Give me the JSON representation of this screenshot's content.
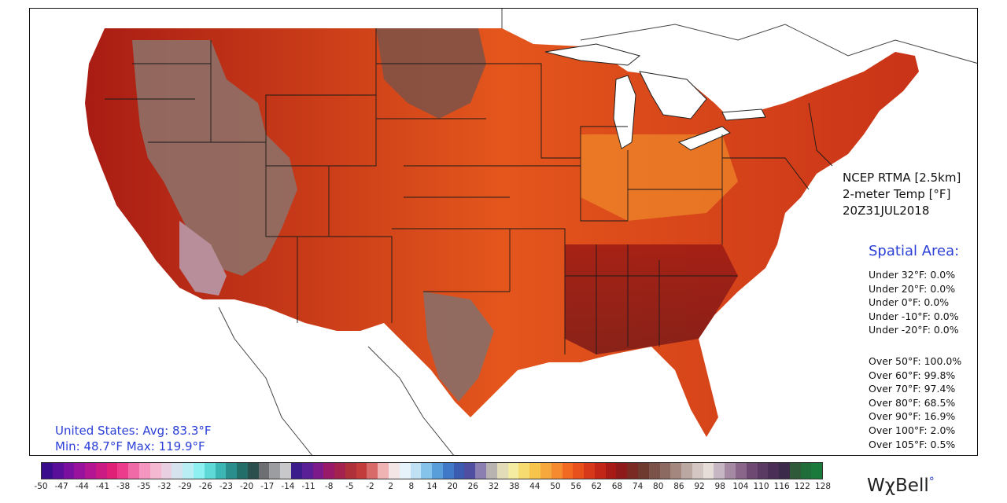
{
  "product": {
    "model": "NCEP RTMA [2.5km]",
    "variable": "2-meter Temp [°F]",
    "valid_time": "20Z31JUL2018"
  },
  "spatial_area": {
    "title": "Spatial Area:",
    "under": [
      "Under 32°F: 0.0%",
      "Under 20°F: 0.0%",
      "Under 0°F: 0.0%",
      "Under -10°F: 0.0%",
      "Under -20°F: 0.0%"
    ],
    "over": [
      "Over 50°F: 100.0%",
      "Over 60°F: 99.8%",
      "Over 70°F: 97.4%",
      "Over 80°F: 68.5%",
      "Over 90°F: 16.9%",
      "Over 100°F: 2.0%",
      "Over 105°F: 0.5%"
    ]
  },
  "summary": {
    "line1": "United States: Avg:  83.3°F",
    "line2": "Min:  48.7°F Max: 119.9°F"
  },
  "colorbar": {
    "ticks": [
      "-50",
      "-47",
      "-44",
      "-41",
      "-38",
      "-35",
      "-32",
      "-29",
      "-26",
      "-23",
      "-20",
      "-17",
      "-14",
      "-11",
      "-8",
      "-5",
      "-2",
      "2",
      "8",
      "14",
      "20",
      "26",
      "32",
      "38",
      "44",
      "50",
      "56",
      "62",
      "68",
      "74",
      "80",
      "86",
      "92",
      "98",
      "104",
      "110",
      "116",
      "122",
      "128"
    ],
    "colors": [
      "#3a0d8c",
      "#5a0f9a",
      "#7a10a0",
      "#98129e",
      "#b41592",
      "#cc1a84",
      "#e02078",
      "#ec3a8c",
      "#f06aa8",
      "#f596c0",
      "#f4b8d0",
      "#e9cfe2",
      "#d6e3ef",
      "#b9eef4",
      "#8ff0f2",
      "#5fd8d8",
      "#3bb6b4",
      "#2a8f8c",
      "#246e6a",
      "#2a4f4d",
      "#6d6f72",
      "#9b9da0",
      "#c8c8ca",
      "#3c1b8a",
      "#5a1e96",
      "#7c1a8c",
      "#9a1a6a",
      "#a3224e",
      "#b0303a",
      "#c23c3c",
      "#d96a6a",
      "#efb3b3",
      "#f3e5e5",
      "#e7f3fa",
      "#bfe1f3",
      "#86c3ea",
      "#5a9ed9",
      "#3f79c8",
      "#3a5bb0",
      "#4f4ea0",
      "#8a7fb0",
      "#b8b2b0",
      "#e2dcb8",
      "#f4eca0",
      "#f6dc70",
      "#f7c44c",
      "#f7a83c",
      "#f68a2e",
      "#f26a22",
      "#e8501c",
      "#d8381a",
      "#c22616",
      "#a81a16",
      "#8e1a1a",
      "#7a2a22",
      "#6e3a30",
      "#7a5248",
      "#8c6a62",
      "#a48880",
      "#bca8a2",
      "#d4c6c2",
      "#e6dcd8",
      "#c6b6c4",
      "#a68aa4",
      "#8a668a",
      "#6e4a72",
      "#5a3a62",
      "#4a2e56",
      "#3c2a4a",
      "#2e5a3a",
      "#1f6e3a",
      "#1a7a3c"
    ]
  },
  "brand": {
    "name": "WχBell",
    "mark": "°"
  }
}
